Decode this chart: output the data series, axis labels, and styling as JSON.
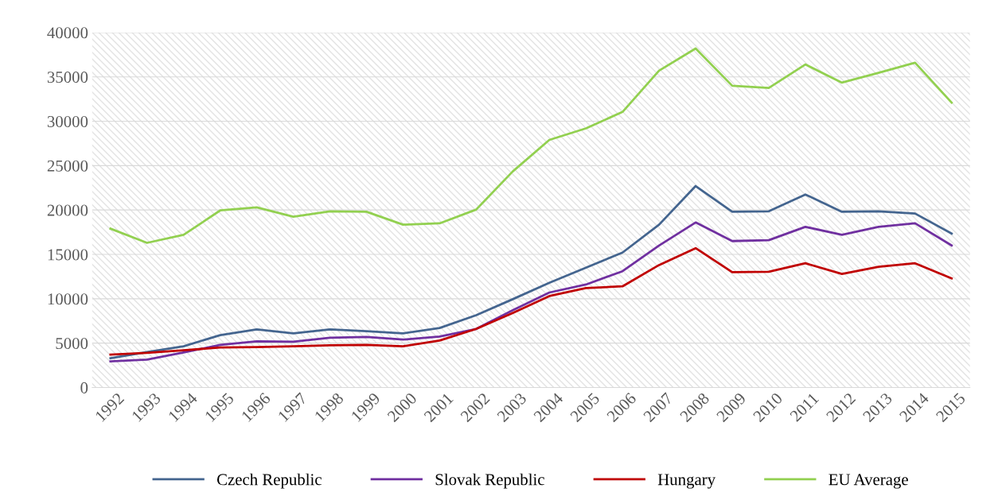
{
  "chart_data": {
    "type": "line",
    "categories": [
      "1992",
      "1993",
      "1994",
      "1995",
      "1996",
      "1997",
      "1998",
      "1999",
      "2000",
      "2001",
      "2002",
      "2003",
      "2004",
      "2005",
      "2006",
      "2007",
      "2008",
      "2009",
      "2010",
      "2011",
      "2012",
      "2013",
      "2014",
      "2015"
    ],
    "series": [
      {
        "name": "Czech Republic",
        "color": "#44658f",
        "values": [
          3300,
          4000,
          4650,
          5900,
          6550,
          6100,
          6550,
          6350,
          6100,
          6700,
          8150,
          9950,
          11800,
          13500,
          15200,
          18350,
          22700,
          19800,
          19850,
          21750,
          19800,
          19850,
          19600,
          17350
        ]
      },
      {
        "name": "Slovak Republic",
        "color": "#7030a0",
        "values": [
          2950,
          3150,
          3950,
          4800,
          5200,
          5150,
          5600,
          5700,
          5400,
          5750,
          6600,
          8700,
          10700,
          11600,
          13100,
          16000,
          18600,
          16500,
          16600,
          18100,
          17200,
          18100,
          18500,
          16000
        ]
      },
      {
        "name": "Hungary",
        "color": "#c00000",
        "values": [
          3700,
          3900,
          4200,
          4500,
          4550,
          4650,
          4750,
          4800,
          4650,
          5300,
          6600,
          8400,
          10300,
          11200,
          11400,
          13800,
          15700,
          13000,
          13050,
          14000,
          12800,
          13600,
          14000,
          12300
        ]
      },
      {
        "name": "EU Average",
        "color": "#92d050",
        "values": [
          17900,
          16300,
          17200,
          19950,
          20300,
          19250,
          19850,
          19800,
          18350,
          18500,
          20050,
          24350,
          27900,
          29200,
          31050,
          35700,
          38200,
          34000,
          33750,
          36400,
          34350,
          35450,
          36600,
          32100
        ]
      }
    ],
    "ylim": [
      0,
      40000
    ],
    "yticks": [
      0,
      5000,
      10000,
      15000,
      20000,
      25000,
      30000,
      35000,
      40000
    ],
    "grid": "y",
    "legend": "bottom",
    "marker": "none",
    "line_style": "solid"
  }
}
